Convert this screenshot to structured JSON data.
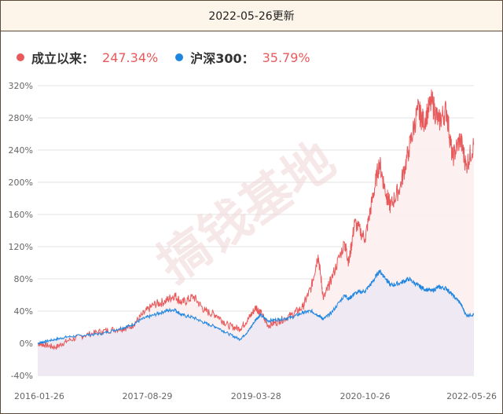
{
  "header": {
    "title": "2022-05-26更新"
  },
  "legend": [
    {
      "name": "成立以来：",
      "value": "247.34%",
      "color": "#e8595c"
    },
    {
      "name": "沪深300：",
      "value": "35.79%",
      "color": "#1f86e0"
    }
  ],
  "watermark": "搞钱基地",
  "colors": {
    "fund": "#e8595c",
    "index": "#1f86e0",
    "fund_fill": "#fdeeee",
    "index_fill": "#ece8f2",
    "grid": "#e3e3e3"
  },
  "chart_data": {
    "type": "line",
    "title": "",
    "xlabel": "",
    "ylabel": "",
    "ylim": [
      -40,
      320
    ],
    "yticks": [
      -40,
      0,
      40,
      80,
      120,
      160,
      200,
      240,
      280,
      320
    ],
    "ytick_labels": [
      "-40%",
      "0%",
      "40%",
      "80%",
      "120%",
      "160%",
      "200%",
      "240%",
      "280%",
      "320%"
    ],
    "xlim": [
      "2016-01-26",
      "2022-05-26"
    ],
    "xticks": [
      "2016-01-26",
      "2017-08-29",
      "2019-03-28",
      "2020-10-26",
      "2022-05-26"
    ],
    "grid": true,
    "legend_position": "top-left",
    "series": [
      {
        "name": "成立以来",
        "x": [
          "2016-01-26",
          "2016-03-01",
          "2016-05-01",
          "2016-07-01",
          "2016-10-01",
          "2017-01-01",
          "2017-04-01",
          "2017-06-01",
          "2017-08-01",
          "2017-10-01",
          "2017-12-01",
          "2018-01-20",
          "2018-03-01",
          "2018-05-01",
          "2018-07-01",
          "2018-09-01",
          "2018-11-01",
          "2019-01-01",
          "2019-02-15",
          "2019-03-28",
          "2019-04-20",
          "2019-06-01",
          "2019-08-01",
          "2019-10-01",
          "2019-12-01",
          "2020-01-15",
          "2020-02-20",
          "2020-03-20",
          "2020-05-01",
          "2020-07-10",
          "2020-08-01",
          "2020-09-01",
          "2020-10-26",
          "2020-12-01",
          "2021-01-10",
          "2021-02-15",
          "2021-03-10",
          "2021-05-01",
          "2021-06-15",
          "2021-08-01",
          "2021-09-01",
          "2021-10-15",
          "2021-11-20",
          "2022-01-01",
          "2022-02-01",
          "2022-03-15",
          "2022-04-15",
          "2022-05-26"
        ],
        "y": [
          0,
          -2,
          -5,
          3,
          10,
          15,
          18,
          20,
          35,
          48,
          52,
          60,
          50,
          58,
          40,
          35,
          22,
          18,
          30,
          45,
          38,
          22,
          28,
          35,
          45,
          70,
          110,
          55,
          80,
          125,
          100,
          150,
          130,
          175,
          225,
          185,
          170,
          195,
          240,
          290,
          275,
          300,
          275,
          290,
          230,
          255,
          220,
          247.34
        ]
      },
      {
        "name": "沪深300",
        "x": [
          "2016-01-26",
          "2016-03-01",
          "2016-05-01",
          "2016-07-01",
          "2016-10-01",
          "2017-01-01",
          "2017-04-01",
          "2017-06-01",
          "2017-08-01",
          "2017-10-01",
          "2017-12-01",
          "2018-01-20",
          "2018-03-01",
          "2018-05-01",
          "2018-07-01",
          "2018-09-01",
          "2018-11-01",
          "2019-01-01",
          "2019-02-15",
          "2019-03-28",
          "2019-04-20",
          "2019-06-01",
          "2019-08-01",
          "2019-10-01",
          "2019-12-01",
          "2020-01-15",
          "2020-02-20",
          "2020-03-20",
          "2020-05-01",
          "2020-07-10",
          "2020-08-01",
          "2020-09-01",
          "2020-10-26",
          "2020-12-01",
          "2021-01-10",
          "2021-02-15",
          "2021-03-10",
          "2021-05-01",
          "2021-06-15",
          "2021-08-01",
          "2021-09-01",
          "2021-10-15",
          "2021-11-20",
          "2022-01-01",
          "2022-02-01",
          "2022-03-15",
          "2022-04-15",
          "2022-05-26"
        ],
        "y": [
          0,
          2,
          5,
          8,
          10,
          12,
          18,
          22,
          30,
          35,
          40,
          42,
          35,
          32,
          25,
          20,
          12,
          5,
          15,
          30,
          35,
          28,
          30,
          32,
          38,
          40,
          35,
          30,
          38,
          60,
          55,
          62,
          65,
          75,
          90,
          80,
          72,
          75,
          80,
          72,
          68,
          65,
          70,
          68,
          60,
          50,
          35,
          35.79
        ]
      }
    ]
  }
}
